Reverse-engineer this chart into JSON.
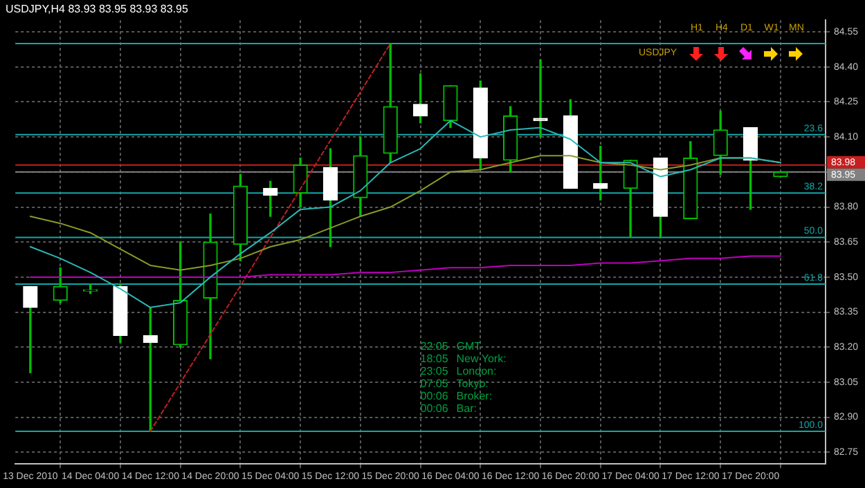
{
  "chart_data": {
    "type": "candlestick",
    "title": "USDJPY,H4 83.93 83.95 83.93 83.95",
    "categories": [
      "13 Dec 2010",
      null,
      "14 Dec 04:00",
      null,
      "14 Dec 12:00",
      null,
      "14 Dec 20:00",
      null,
      "15 Dec 04:00",
      null,
      "15 Dec 12:00",
      null,
      "15 Dec 20:00",
      null,
      "16 Dec 04:00",
      null,
      "16 Dec 12:00",
      null,
      "16 Dec 20:00",
      null,
      "17 Dec 04:00",
      null,
      "17 Dec 12:00",
      null,
      "17 Dec 20:00",
      null
    ],
    "ohlc": [
      [
        83.46,
        83.46,
        83.09,
        83.37
      ],
      [
        83.4,
        83.54,
        83.39,
        83.46
      ],
      [
        83.44,
        83.47,
        83.43,
        83.44
      ],
      [
        83.46,
        83.47,
        83.22,
        83.25
      ],
      [
        83.25,
        83.37,
        82.84,
        83.22
      ],
      [
        83.21,
        83.65,
        83.2,
        83.4
      ],
      [
        83.41,
        83.77,
        83.15,
        83.65
      ],
      [
        83.64,
        83.94,
        83.57,
        83.89
      ],
      [
        83.88,
        83.91,
        83.76,
        83.85
      ],
      [
        83.86,
        84.01,
        83.8,
        83.98
      ],
      [
        83.97,
        84.05,
        83.63,
        83.83
      ],
      [
        83.84,
        84.1,
        83.76,
        84.02
      ],
      [
        84.03,
        84.5,
        83.99,
        84.23
      ],
      [
        84.24,
        84.37,
        84.16,
        84.19
      ],
      [
        84.17,
        84.32,
        84.14,
        84.32
      ],
      [
        84.31,
        84.34,
        83.96,
        84.01
      ],
      [
        84.0,
        84.23,
        83.95,
        84.19
      ],
      [
        84.18,
        84.43,
        84.1,
        84.17
      ],
      [
        84.19,
        84.26,
        83.88,
        83.88
      ],
      [
        83.9,
        84.06,
        83.83,
        83.88
      ],
      [
        83.88,
        84.0,
        83.67,
        84.0
      ],
      [
        84.01,
        84.01,
        83.67,
        83.76
      ],
      [
        83.75,
        84.08,
        83.75,
        84.01
      ],
      [
        84.02,
        84.21,
        83.94,
        84.13
      ],
      [
        84.14,
        84.14,
        83.79,
        84.0
      ],
      [
        83.93,
        83.95,
        83.93,
        83.95
      ]
    ],
    "color": "#00c000",
    "colors": [
      "#ffffff",
      "#00c000",
      "#00c000",
      "#ffffff",
      "#ffffff",
      "#00c000",
      "#00c000",
      "#00c000",
      "#ffffff",
      "#00c000",
      "#ffffff",
      "#00c000",
      "#00c000",
      "#ffffff",
      "#00c000",
      "#ffffff",
      "#00c000",
      "#ffffff",
      "#ffffff",
      "#ffffff",
      "#00c000",
      "#ffffff",
      "#00c000",
      "#00c000",
      "#ffffff",
      "#00c000"
    ],
    "series": [
      {
        "type": "line",
        "color": "#2ab7b7",
        "line_style": "solid",
        "marker": "none",
        "values": [
          83.63,
          83.58,
          83.52,
          83.45,
          83.37,
          83.39,
          83.5,
          83.6,
          83.69,
          83.79,
          83.8,
          83.87,
          83.99,
          84.05,
          84.17,
          84.1,
          84.13,
          84.14,
          84.09,
          83.99,
          83.99,
          83.93,
          83.96,
          84.01,
          84.01,
          83.99
        ]
      },
      {
        "type": "line",
        "color": "#8a9a2a",
        "line_style": "solid",
        "marker": "none",
        "values": [
          83.76,
          83.73,
          83.69,
          83.62,
          83.55,
          83.53,
          83.55,
          83.58,
          83.63,
          83.66,
          83.71,
          83.76,
          83.8,
          83.87,
          83.95,
          83.96,
          83.99,
          84.02,
          84.02,
          83.99,
          83.98,
          83.96,
          83.98,
          84.01,
          84.01,
          83.99
        ]
      },
      {
        "type": "line",
        "color": "#c000c0",
        "line_style": "solid",
        "marker": "none",
        "values": [
          83.5,
          83.5,
          83.5,
          83.5,
          83.5,
          83.5,
          83.5,
          83.5,
          83.51,
          83.51,
          83.51,
          83.52,
          83.52,
          83.53,
          83.54,
          83.54,
          83.55,
          83.55,
          83.55,
          83.56,
          83.56,
          83.57,
          83.58,
          83.58,
          83.59,
          83.59
        ]
      },
      {
        "type": "line",
        "color": "#c02020",
        "line_style": "dotted",
        "marker": "none",
        "values": [
          null,
          null,
          null,
          null,
          82.84,
          null,
          null,
          null,
          null,
          null,
          null,
          null,
          84.5,
          null,
          null,
          null,
          null,
          null,
          null,
          null,
          null,
          null,
          null,
          null,
          null,
          null
        ]
      }
    ],
    "ylim": [
      82.7,
      84.6
    ],
    "yticks": [
      {
        "value": 84.55,
        "label": "84.55"
      },
      {
        "value": 84.4,
        "label": "84.40"
      },
      {
        "value": 84.25,
        "label": "84.25"
      },
      {
        "value": 84.1,
        "label": "84.10"
      },
      {
        "value": 83.95,
        "label": null
      },
      {
        "value": 83.8,
        "label": "83.80"
      },
      {
        "value": 83.65,
        "label": "83.65"
      },
      {
        "value": 83.5,
        "label": "83.50"
      },
      {
        "value": 83.35,
        "label": "83.35"
      },
      {
        "value": 83.2,
        "label": "83.20"
      },
      {
        "value": 83.05,
        "label": "83.05"
      },
      {
        "value": 82.9,
        "label": "82.90"
      },
      {
        "value": 82.75,
        "label": "82.75"
      }
    ],
    "grid": true,
    "ref_lines": [
      {
        "axis": "y",
        "value": 84.5,
        "color": "#14a7a7"
      },
      {
        "axis": "y",
        "value": 84.11,
        "color": "#14a7a7"
      },
      {
        "axis": "y",
        "value": 83.86,
        "color": "#14a7a7"
      },
      {
        "axis": "y",
        "value": 83.67,
        "color": "#14a7a7"
      },
      {
        "axis": "y",
        "value": 83.47,
        "color": "#14a7a7"
      },
      {
        "axis": "y",
        "value": 82.84,
        "color": "#14a7a7"
      },
      {
        "axis": "y",
        "value": 83.98,
        "label": "83.98",
        "color": "#c81e1e"
      },
      {
        "axis": "y",
        "value": 83.95,
        "label": "83.95",
        "color": "#808080"
      }
    ],
    "annotations": [
      "H1",
      "H4",
      "D1",
      "W1",
      "MN",
      "USDJPY",
      "22:05 GMT",
      "18:05 New York:",
      "23:05 London:",
      "07:05 Tokyo:",
      "00:06 Broker:",
      "00:06 Bar:",
      "23.6",
      "38.2",
      "50.0",
      "61.8",
      "100.0"
    ]
  }
}
